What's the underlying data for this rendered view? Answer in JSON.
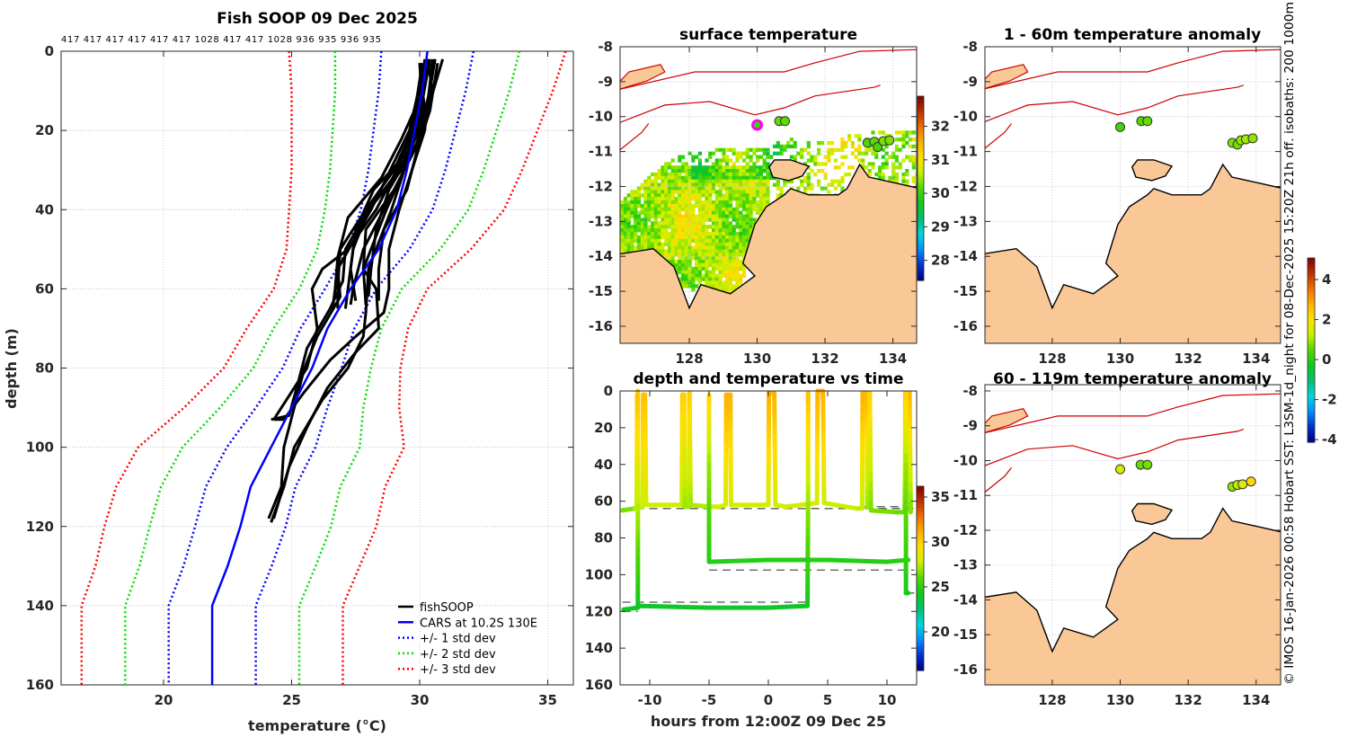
{
  "copyright_text": "© IMOS 16-Jan-2026 00:58 Hobart SST: L3SM-1d_night for 08-Dec-2025 15:20Z 21h off. isobaths: 200  1000m",
  "colormap": [
    "#00007f",
    "#0030d0",
    "#0090ff",
    "#00d8e0",
    "#00c070",
    "#10c820",
    "#50d800",
    "#c8f000",
    "#ffe000",
    "#ffb000",
    "#f07000",
    "#c03000",
    "#800000"
  ],
  "colors": {
    "land": "#f9c896",
    "isobath": "#cc0000",
    "coast": "#000000",
    "cars_marker": "#ff00ff"
  },
  "chart_data": [
    {
      "type": "line",
      "title": "Fish SOOP 09 Dec 2025",
      "profile_ids_text": "417 417 417 417 417 417 1028 417 417 1028 936 935 936 935",
      "xlabel": "temperature (°C)",
      "ylabel": "depth (m)",
      "xlim": [
        16,
        36
      ],
      "ylim": [
        0,
        160
      ],
      "y_reversed": true,
      "xticks": [
        20,
        25,
        30,
        35
      ],
      "yticks": [
        0,
        20,
        40,
        60,
        80,
        100,
        120,
        140,
        160
      ],
      "grid": true,
      "legend_position": "bottom-right",
      "legend": [
        "fishSOOP",
        "CARS at 10.2S 130E",
        "+/- 1 std dev",
        "+/- 2 std dev",
        "+/- 3 std dev"
      ],
      "series_colors": {
        "fishsoop": "#000000",
        "cars": "#0000ff",
        "std1": "#0000ff",
        "std2": "#00dd00",
        "std3": "#ff0000"
      },
      "cars": {
        "depth": [
          0,
          10,
          20,
          30,
          40,
          50,
          60,
          70,
          80,
          90,
          100,
          110,
          120,
          130,
          140,
          160
        ],
        "mean": [
          30.3,
          30.1,
          29.8,
          29.5,
          29.1,
          28.4,
          27.3,
          26.4,
          25.8,
          25.0,
          24.2,
          23.4,
          23.0,
          22.5,
          21.9,
          21.9
        ],
        "std": [
          1.8,
          1.7,
          1.6,
          1.5,
          1.4,
          1.2,
          1.0,
          1.05,
          1.15,
          1.4,
          1.73,
          1.75,
          1.77,
          1.72,
          1.7,
          1.7
        ]
      },
      "fishsoop_profiles": [
        [
          [
            2,
            30.3
          ],
          [
            10,
            30.5
          ],
          [
            20,
            29.9
          ],
          [
            30,
            29.4
          ],
          [
            40,
            28.6
          ],
          [
            50,
            27.8
          ],
          [
            60,
            27.4
          ],
          [
            64,
            27.3
          ]
        ],
        [
          [
            2,
            30.6
          ],
          [
            10,
            30.4
          ],
          [
            20,
            30.0
          ],
          [
            30,
            29.2
          ],
          [
            40,
            28.0
          ],
          [
            50,
            27.4
          ],
          [
            60,
            27.2
          ],
          [
            65,
            27.1
          ]
        ],
        [
          [
            3,
            30.0
          ],
          [
            15,
            30.2
          ],
          [
            25,
            29.6
          ],
          [
            35,
            28.2
          ],
          [
            45,
            27.5
          ],
          [
            55,
            27.3
          ],
          [
            63,
            27.5
          ]
        ],
        [
          [
            2,
            30.9
          ],
          [
            15,
            30.3
          ],
          [
            25,
            29.8
          ],
          [
            35,
            29.0
          ],
          [
            45,
            27.9
          ],
          [
            55,
            27.8
          ],
          [
            64,
            27.9
          ]
        ],
        [
          [
            3,
            30.4
          ],
          [
            15,
            29.9
          ],
          [
            25,
            29.7
          ],
          [
            35,
            28.8
          ],
          [
            45,
            28.3
          ],
          [
            55,
            28.1
          ],
          [
            62,
            28.0
          ]
        ],
        [
          [
            2,
            30.2
          ],
          [
            12,
            30.0
          ],
          [
            22,
            29.3
          ],
          [
            32,
            28.5
          ],
          [
            42,
            27.2
          ],
          [
            52,
            26.8
          ],
          [
            60,
            26.7
          ],
          [
            65,
            26.6
          ]
        ],
        [
          [
            3,
            30.7
          ],
          [
            15,
            30.4
          ],
          [
            25,
            29.9
          ],
          [
            35,
            29.5
          ],
          [
            45,
            28.6
          ],
          [
            55,
            28.4
          ],
          [
            63,
            28.4
          ]
        ],
        [
          [
            3,
            30.1
          ],
          [
            20,
            29.7
          ],
          [
            30,
            29.0
          ],
          [
            40,
            27.9
          ],
          [
            50,
            26.9
          ],
          [
            60,
            26.8
          ],
          [
            65,
            26.8
          ]
        ],
        [
          [
            2,
            30.5
          ],
          [
            20,
            30.2
          ],
          [
            30,
            29.7
          ],
          [
            40,
            29.2
          ],
          [
            50,
            28.8
          ],
          [
            60,
            28.8
          ],
          [
            66,
            28.6
          ],
          [
            72,
            27.5
          ],
          [
            78,
            26.5
          ],
          [
            86,
            25.5
          ],
          [
            93,
            24.7
          ],
          [
            93,
            24.3
          ]
        ],
        [
          [
            3,
            30.3
          ],
          [
            20,
            29.8
          ],
          [
            30,
            29.1
          ],
          [
            40,
            28.3
          ],
          [
            50,
            27.2
          ],
          [
            55,
            26.2
          ],
          [
            60,
            25.8
          ],
          [
            70,
            26.0
          ],
          [
            80,
            25.6
          ],
          [
            93,
            24.3
          ]
        ],
        [
          [
            2,
            30.6
          ],
          [
            20,
            30.1
          ],
          [
            40,
            28.7
          ],
          [
            55,
            27.8
          ],
          [
            60,
            28.3
          ],
          [
            70,
            28.4
          ],
          [
            76,
            27.5
          ],
          [
            85,
            26.4
          ],
          [
            95,
            25.6
          ],
          [
            105,
            24.9
          ],
          [
            118,
            24.3
          ]
        ],
        [
          [
            3,
            30.2
          ],
          [
            20,
            29.6
          ],
          [
            40,
            28.1
          ],
          [
            55,
            26.8
          ],
          [
            62,
            26.9
          ],
          [
            72,
            26.0
          ],
          [
            80,
            25.5
          ],
          [
            90,
            25.1
          ],
          [
            100,
            24.7
          ],
          [
            110,
            24.6
          ],
          [
            118,
            24.1
          ]
        ],
        [
          [
            2,
            30.4
          ],
          [
            20,
            29.9
          ],
          [
            40,
            28.9
          ],
          [
            55,
            28.0
          ],
          [
            66,
            27.9
          ],
          [
            72,
            27.8
          ],
          [
            80,
            27.2
          ],
          [
            88,
            26.2
          ],
          [
            100,
            25.1
          ],
          [
            110,
            24.7
          ],
          [
            119,
            24.2
          ]
        ],
        [
          [
            3,
            30.0
          ],
          [
            15,
            30.1
          ],
          [
            30,
            29.3
          ],
          [
            40,
            28.0
          ],
          [
            50,
            27.1
          ],
          [
            58,
            27.0
          ],
          [
            65,
            26.5
          ],
          [
            75,
            25.6
          ],
          [
            85,
            25.2
          ],
          [
            92,
            24.9
          ],
          [
            93,
            24.2
          ]
        ]
      ]
    },
    {
      "type": "heatmap",
      "title": "surface temperature",
      "xlim": [
        125.96,
        134.7
      ],
      "ylim": [
        -16.49,
        -8
      ],
      "xticks": [
        128,
        130,
        132,
        134
      ],
      "yticks": [
        -8,
        -9,
        -10,
        -11,
        -12,
        -13,
        -14,
        -15,
        -16
      ],
      "colorbar": {
        "clim": [
          27.4,
          32.9
        ],
        "ticks": [
          28,
          29,
          30,
          31,
          32
        ]
      },
      "cars_location": {
        "lon": 130.0,
        "lat": -10.24
      },
      "markers": [
        {
          "lon": 130.0,
          "lat": -10.24,
          "value": 30.0
        },
        {
          "lon": 130.65,
          "lat": -10.13,
          "value": 30.2
        },
        {
          "lon": 130.82,
          "lat": -10.13,
          "value": 30.2
        },
        {
          "lon": 133.25,
          "lat": -10.75,
          "value": 30.1
        },
        {
          "lon": 133.45,
          "lat": -10.72,
          "value": 30.2
        },
        {
          "lon": 133.55,
          "lat": -10.87,
          "value": 30.1
        },
        {
          "lon": 133.72,
          "lat": -10.7,
          "value": 30.3
        },
        {
          "lon": 133.9,
          "lat": -10.68,
          "value": 30.3
        }
      ]
    },
    {
      "type": "line",
      "title": "depth and temperature vs time",
      "xlabel": "hours from 12:00Z 09 Dec 25",
      "xlim": [
        -12.5,
        12.5
      ],
      "ylim": [
        0,
        160
      ],
      "y_reversed": true,
      "xticks": [
        -10,
        -5,
        0,
        5,
        10
      ],
      "yticks": [
        0,
        20,
        40,
        60,
        80,
        100,
        120,
        140,
        160
      ],
      "colorbar": {
        "clim": [
          15.7,
          36.2
        ],
        "ticks": [
          20,
          25,
          30,
          35
        ]
      },
      "tracks": [
        [
          [
            -12.3,
            65,
            26
          ],
          [
            -11.3,
            64,
            27
          ],
          [
            -11.1,
            63,
            27.5
          ],
          [
            -11.05,
            2,
            30.5
          ],
          [
            -11.0,
            63,
            27.5
          ],
          [
            -10.6,
            63,
            27.8
          ],
          [
            -10.55,
            2,
            30.5
          ],
          [
            -10.4,
            2,
            30.5
          ],
          [
            -10.3,
            62,
            28
          ],
          [
            -7.3,
            62,
            27.8
          ],
          [
            -7.25,
            2,
            30
          ],
          [
            -7.1,
            2,
            30
          ],
          [
            -7.05,
            63,
            27
          ],
          [
            -6.7,
            63,
            27
          ],
          [
            -6.65,
            1,
            30
          ],
          [
            -6.55,
            62,
            27
          ],
          [
            -5,
            63,
            27.6
          ],
          [
            -4.1,
            63,
            27.8
          ],
          [
            -3.6,
            62,
            28
          ],
          [
            -3.55,
            2,
            31
          ],
          [
            -3.2,
            2,
            31
          ],
          [
            -3.15,
            62,
            28
          ],
          [
            0,
            62,
            28
          ],
          [
            0.05,
            1,
            31
          ],
          [
            0.5,
            1,
            31
          ],
          [
            0.6,
            62,
            28
          ],
          [
            1.5,
            63,
            28
          ],
          [
            4.1,
            61,
            28
          ],
          [
            4.15,
            0,
            31
          ],
          [
            4.6,
            0,
            31
          ],
          [
            4.7,
            61,
            28
          ],
          [
            7.5,
            64,
            27.5
          ],
          [
            7.9,
            64,
            27.5
          ],
          [
            7.95,
            1,
            31
          ],
          [
            8.3,
            1,
            31
          ],
          [
            8.35,
            63,
            27
          ],
          [
            8.5,
            63,
            27
          ],
          [
            8.55,
            1,
            30
          ],
          [
            8.65,
            65,
            26.5
          ],
          [
            10.8,
            66,
            26.5
          ],
          [
            11.5,
            66,
            26
          ],
          [
            11.55,
            1,
            31
          ],
          [
            11.9,
            1,
            31
          ],
          [
            12,
            66,
            26.5
          ]
        ],
        [
          [
            -12.2,
            119,
            24
          ],
          [
            -11.0,
            118,
            24.2
          ],
          [
            -11.0,
            60,
            27.5
          ],
          [
            -11.0,
            0,
            30.5
          ]
        ],
        [
          [
            -11.0,
            117,
            24.2
          ],
          [
            -5,
            118,
            24
          ],
          [
            0,
            118,
            24
          ],
          [
            3.3,
            117,
            24.2
          ],
          [
            3.35,
            60,
            27
          ],
          [
            3.35,
            1,
            30.5
          ]
        ],
        [
          [
            -5,
            2,
            30
          ],
          [
            -5,
            40,
            27
          ],
          [
            -5,
            93,
            24.8
          ],
          [
            0,
            92,
            24.8
          ],
          [
            5,
            92,
            24.8
          ],
          [
            10,
            93,
            24.8
          ],
          [
            11.8,
            92,
            25
          ]
        ],
        [
          [
            11.6,
            1,
            30
          ],
          [
            11.6,
            40,
            27
          ],
          [
            11.6,
            110,
            24.5
          ],
          [
            11.8,
            110,
            24.5
          ]
        ]
      ],
      "reference_depths": [
        [
          -12.3,
          12.5,
          64
        ],
        [
          -5,
          12.3,
          97.5
        ],
        [
          -12.3,
          3.3,
          115
        ],
        [
          -12.3,
          -11,
          120
        ],
        [
          11.8,
          12.3,
          110
        ],
        [
          8,
          12.3,
          63
        ]
      ]
    },
    {
      "type": "heatmap",
      "title": "1 - 60m temperature anomaly",
      "xlim": [
        126.02,
        134.72
      ],
      "ylim": [
        -16.49,
        -8
      ],
      "xticks": [
        128,
        130,
        132,
        134
      ],
      "yticks": [
        -8,
        -9,
        -10,
        -11,
        -12,
        -13,
        -14,
        -15,
        -16
      ],
      "colorbar": {
        "clim": [
          -4.13,
          5.08
        ],
        "ticks": [
          -4,
          -2,
          0,
          2,
          4
        ]
      },
      "markers": [
        {
          "lon": 130.0,
          "lat": -10.3,
          "value": 0.3
        },
        {
          "lon": 130.62,
          "lat": -10.13,
          "value": 0.5
        },
        {
          "lon": 130.8,
          "lat": -10.13,
          "value": 0.6
        },
        {
          "lon": 133.3,
          "lat": -10.75,
          "value": 0.8
        },
        {
          "lon": 133.45,
          "lat": -10.8,
          "value": 0.7
        },
        {
          "lon": 133.55,
          "lat": -10.68,
          "value": 0.9
        },
        {
          "lon": 133.7,
          "lat": -10.65,
          "value": 1.0
        },
        {
          "lon": 133.9,
          "lat": -10.62,
          "value": 0.9
        }
      ]
    },
    {
      "type": "heatmap",
      "title": "60 - 119m temperature anomaly",
      "xlim": [
        126.02,
        134.72
      ],
      "ylim": [
        -16.44,
        -7.82
      ],
      "xticks": [
        128,
        130,
        132,
        134
      ],
      "yticks": [
        -8,
        -9,
        -10,
        -11,
        -12,
        -13,
        -14,
        -15,
        -16
      ],
      "colorbar_shared_with": "1 - 60m temperature anomaly",
      "markers": [
        {
          "lon": 130.0,
          "lat": -10.25,
          "value": 1.5
        },
        {
          "lon": 130.6,
          "lat": -10.12,
          "value": 0.6
        },
        {
          "lon": 130.8,
          "lat": -10.12,
          "value": 0.7
        },
        {
          "lon": 133.3,
          "lat": -10.75,
          "value": 0.9
        },
        {
          "lon": 133.45,
          "lat": -10.7,
          "value": 1.2
        },
        {
          "lon": 133.6,
          "lat": -10.68,
          "value": 1.5
        },
        {
          "lon": 133.85,
          "lat": -10.6,
          "value": 2.1
        }
      ]
    }
  ]
}
